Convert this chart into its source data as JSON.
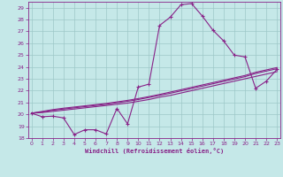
{
  "xlabel": "Windchill (Refroidissement éolien,°C)",
  "bg_color": "#c5e8e8",
  "grid_color": "#9dc8c8",
  "line_color": "#882288",
  "xlim_min": -0.3,
  "xlim_max": 23.3,
  "ylim_min": 18,
  "ylim_max": 29.5,
  "yticks": [
    18,
    19,
    20,
    21,
    22,
    23,
    24,
    25,
    26,
    27,
    28,
    29
  ],
  "xticks": [
    0,
    1,
    2,
    3,
    4,
    5,
    6,
    7,
    8,
    9,
    10,
    11,
    12,
    13,
    14,
    15,
    16,
    17,
    18,
    19,
    20,
    21,
    22,
    23
  ],
  "main_x": [
    0,
    1,
    2,
    3,
    4,
    5,
    6,
    7,
    8,
    9,
    10,
    11,
    12,
    13,
    14,
    15,
    16,
    17,
    18,
    19,
    20,
    21,
    22,
    23
  ],
  "main_y": [
    20.1,
    19.8,
    19.85,
    19.7,
    18.3,
    18.7,
    18.7,
    18.35,
    20.5,
    19.2,
    22.3,
    22.55,
    27.5,
    28.2,
    29.25,
    29.35,
    28.3,
    27.1,
    26.2,
    25.0,
    24.85,
    22.2,
    22.8,
    23.8
  ],
  "trend1_x": [
    0,
    1,
    2,
    3,
    4,
    5,
    6,
    7,
    8,
    9,
    10,
    11,
    12,
    13,
    14,
    15,
    16,
    17,
    18,
    19,
    20,
    21,
    22,
    23
  ],
  "trend1_y": [
    20.1,
    20.15,
    20.25,
    20.35,
    20.45,
    20.55,
    20.65,
    20.75,
    20.85,
    20.95,
    21.1,
    21.25,
    21.45,
    21.6,
    21.8,
    22.0,
    22.2,
    22.4,
    22.6,
    22.8,
    23.0,
    23.2,
    23.4,
    23.6
  ],
  "trend2_x": [
    0,
    1,
    2,
    3,
    4,
    5,
    6,
    7,
    8,
    9,
    10,
    11,
    12,
    13,
    14,
    15,
    16,
    17,
    18,
    19,
    20,
    21,
    22,
    23
  ],
  "trend2_y": [
    20.1,
    20.2,
    20.35,
    20.45,
    20.55,
    20.65,
    20.75,
    20.85,
    20.98,
    21.1,
    21.25,
    21.42,
    21.6,
    21.78,
    21.98,
    22.18,
    22.38,
    22.58,
    22.78,
    22.98,
    23.18,
    23.45,
    23.65,
    23.85
  ],
  "trend3_x": [
    0,
    1,
    2,
    3,
    4,
    5,
    6,
    7,
    8,
    9,
    10,
    11,
    12,
    13,
    14,
    15,
    16,
    17,
    18,
    19,
    20,
    21,
    22,
    23
  ],
  "trend3_y": [
    20.1,
    20.25,
    20.4,
    20.52,
    20.62,
    20.72,
    20.82,
    20.92,
    21.05,
    21.18,
    21.33,
    21.5,
    21.68,
    21.88,
    22.08,
    22.28,
    22.48,
    22.68,
    22.88,
    23.08,
    23.28,
    23.55,
    23.75,
    23.95
  ]
}
